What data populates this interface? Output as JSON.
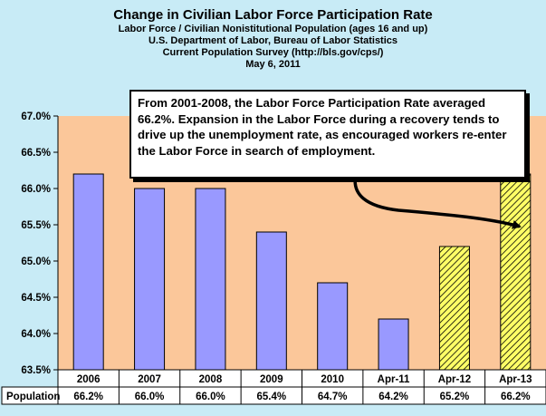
{
  "chart_data": {
    "type": "bar",
    "title": "Change in Civilian Labor Force Participation Rate",
    "subtitle_lines": [
      "Labor Force / Civilian Nonistitutional Population (ages 16 and up)",
      "U.S. Department of Labor, Bureau of Labor Statistics",
      "Current Population Survey (http://bls.gov/cps/)",
      "May 6, 2011"
    ],
    "categories": [
      "2006",
      "2007",
      "2008",
      "2009",
      "2010",
      "Apr-11",
      "Apr-12",
      "Apr-13"
    ],
    "values": [
      66.2,
      66.0,
      66.0,
      65.4,
      64.7,
      64.2,
      65.2,
      66.2
    ],
    "projected": [
      false,
      false,
      false,
      false,
      false,
      false,
      true,
      true
    ],
    "table_row_label": "Population",
    "table_values": [
      "66.2%",
      "66.0%",
      "66.0%",
      "65.4%",
      "64.7%",
      "64.2%",
      "65.2%",
      "66.2%"
    ],
    "y_ticks": [
      "63.5%",
      "64.0%",
      "64.5%",
      "65.0%",
      "65.5%",
      "66.0%",
      "66.5%",
      "67.0%"
    ],
    "ylim": [
      63.5,
      67.0
    ],
    "grid": false,
    "annotation": "From 2001-2008, the Labor Force Participation Rate averaged 66.2%.  Expansion in the Labor Force during a recovery tends to drive up the unemployment rate, as encouraged workers re-enter the Labor Force in search of employment.",
    "colors": {
      "background": "#c8ebf6",
      "plot_area": "#fbc79a",
      "bar_actual": "#9999ff",
      "bar_projected": "#ffff66",
      "hatch": "#000000"
    }
  }
}
